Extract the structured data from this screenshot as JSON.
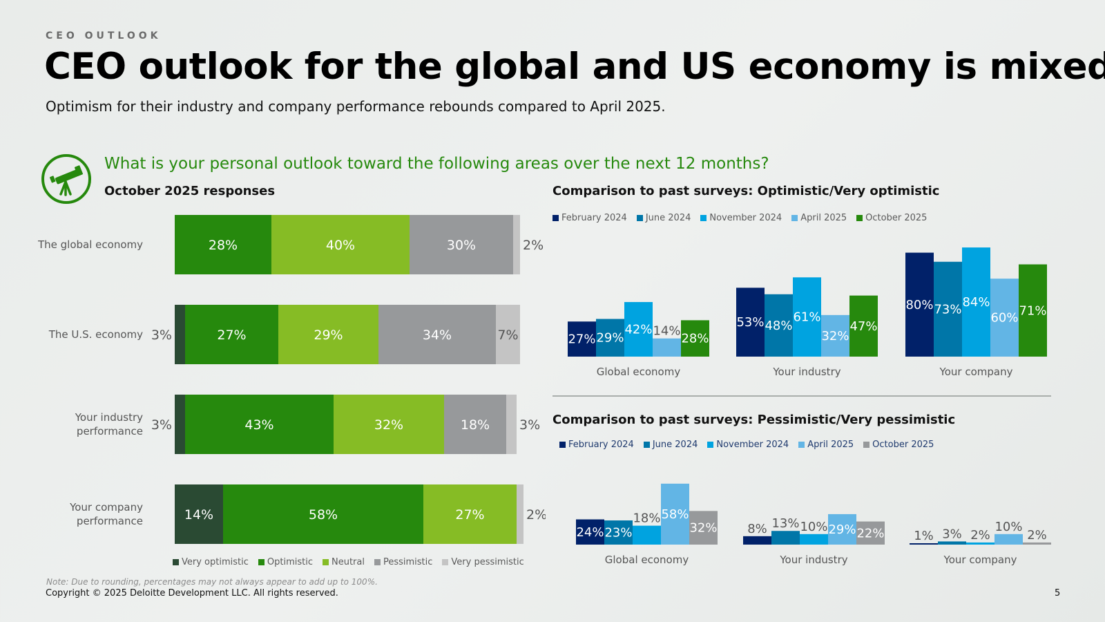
{
  "eyebrow": "CEO OUTLOOK",
  "title": "CEO outlook for the global and US economy is mixed",
  "subtitle": "Optimism for their industry and company performance rebounds compared to April 2025.",
  "question": "What is your personal outlook toward the following areas over the next 12 months?",
  "icon": "telescope-icon",
  "note": "Note: Due to rounding, percentages may not always appear to add up to 100%.",
  "copyright": "Copyright © 2025 Deloitte Development LLC. All rights reserved.",
  "page_number": "5",
  "colors": {
    "very_optimistic": "#2a4a33",
    "optimistic": "#26890d",
    "neutral": "#86bc25",
    "pessimistic": "#97999b",
    "very_pessimistic": "#c4c4c4",
    "feb2024": "#012169",
    "jun2024": "#0076a8",
    "nov2024": "#00a3e0",
    "apr2025": "#62b5e5",
    "oct2025_opt": "#26890d",
    "oct2025_pes": "#97999b",
    "accent_green": "#26890d"
  },
  "chart_data": [
    {
      "id": "october-responses",
      "type": "bar",
      "orientation": "horizontal",
      "stacked": true,
      "title": "October 2025 responses",
      "categories": [
        "The global economy",
        "The U.S. economy",
        "Your industry performance",
        "Your company performance"
      ],
      "series": [
        {
          "name": "Very optimistic",
          "values": [
            0,
            3,
            3,
            14
          ]
        },
        {
          "name": "Optimistic",
          "values": [
            28,
            27,
            43,
            58
          ]
        },
        {
          "name": "Neutral",
          "values": [
            40,
            29,
            32,
            27
          ]
        },
        {
          "name": "Pessimistic",
          "values": [
            30,
            34,
            18,
            0
          ]
        },
        {
          "name": "Very pessimistic",
          "values": [
            2,
            7,
            3,
            2
          ]
        }
      ],
      "unit": "%"
    },
    {
      "id": "optimistic-comparison",
      "type": "bar",
      "title": "Comparison to past surveys: Optimistic/Very optimistic",
      "categories": [
        "Global economy",
        "Your industry",
        "Your company"
      ],
      "series": [
        {
          "name": "February 2024",
          "values": [
            27,
            53,
            80
          ]
        },
        {
          "name": "June 2024",
          "values": [
            29,
            48,
            73
          ]
        },
        {
          "name": "November 2024",
          "values": [
            42,
            61,
            84
          ]
        },
        {
          "name": "April 2025",
          "values": [
            14,
            32,
            60
          ]
        },
        {
          "name": "October 2025",
          "values": [
            28,
            47,
            71
          ]
        }
      ],
      "unit": "%"
    },
    {
      "id": "pessimistic-comparison",
      "type": "bar",
      "title": "Comparison to past surveys: Pessimistic/Very pessimistic",
      "categories": [
        "Global economy",
        "Your industry",
        "Your company"
      ],
      "series": [
        {
          "name": "February 2024",
          "values": [
            24,
            8,
            1
          ]
        },
        {
          "name": "June 2024",
          "values": [
            23,
            13,
            3
          ]
        },
        {
          "name": "November 2024",
          "values": [
            18,
            10,
            2
          ]
        },
        {
          "name": "April 2025",
          "values": [
            58,
            29,
            10
          ]
        },
        {
          "name": "October 2025",
          "values": [
            32,
            22,
            2
          ]
        }
      ],
      "unit": "%"
    }
  ]
}
